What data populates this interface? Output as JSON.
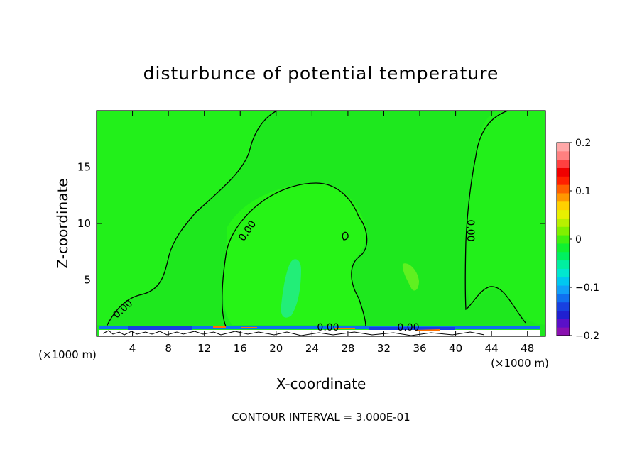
{
  "chart_data": {
    "type": "heatmap",
    "title": "disturbunce of potential temperature",
    "xlabel": "X-coordinate",
    "ylabel": "Z-coordinate",
    "x_unit_left": "(×1000 m)",
    "x_unit_right": "(×1000 m)",
    "xlim": [
      0,
      50
    ],
    "ylim": [
      0,
      20
    ],
    "xticks": [
      4,
      8,
      12,
      16,
      20,
      24,
      28,
      32,
      36,
      40,
      44,
      48
    ],
    "yticks": [
      5,
      10,
      15
    ],
    "contour_interval_text": "CONTOUR INTERVAL = 3.000E-01",
    "contour_labels": [
      "0.00",
      "0.00",
      "0.00",
      "0.00",
      "0.00"
    ],
    "colorbar": {
      "range": [
        -0.2,
        0.2
      ],
      "tick_values": [
        0.2,
        0.1,
        0,
        -0.1,
        -0.2
      ],
      "tick_labels": [
        "0.2",
        "0.1",
        "0",
        "−0.1",
        "−0.2"
      ],
      "colors": [
        "#8a10b0",
        "#5a10c8",
        "#2020d0",
        "#1840e0",
        "#1070f0",
        "#10a0f8",
        "#00c8f0",
        "#00e8d0",
        "#00f0a0",
        "#00f060",
        "#10f030",
        "#40f010",
        "#80f000",
        "#b8f000",
        "#e8f000",
        "#ffd000",
        "#ff9800",
        "#ff6000",
        "#ff2000",
        "#f00000",
        "#ff4040",
        "#ff8080",
        "#ffa8a8"
      ]
    },
    "background_value": 0,
    "background_color": "#1ee81e"
  }
}
